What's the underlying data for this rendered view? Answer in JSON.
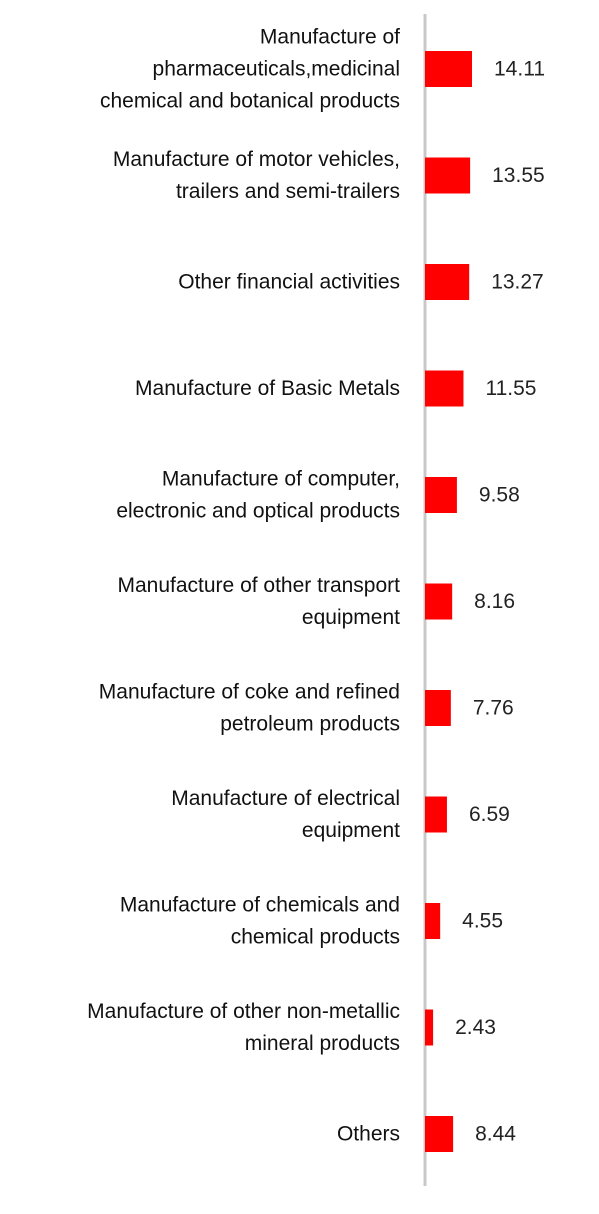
{
  "chart_data": {
    "type": "bar",
    "orientation": "horizontal",
    "title": "",
    "xlabel": "",
    "ylabel": "",
    "xlim": [
      0,
      14.11
    ],
    "grid": false,
    "legend": "none",
    "bar_color": "#ff0000",
    "axis_color": "#c8c8c8",
    "categories": [
      [
        "Manufacture of",
        "pharmaceuticals,medicinal",
        "chemical and botanical products"
      ],
      [
        "Manufacture of motor vehicles,",
        "trailers and semi-trailers"
      ],
      [
        "Other financial activities"
      ],
      [
        "Manufacture of Basic Metals"
      ],
      [
        "Manufacture of computer,",
        "electronic and optical products"
      ],
      [
        "Manufacture of other transport",
        "equipment"
      ],
      [
        "Manufacture of coke and refined",
        "petroleum products"
      ],
      [
        "Manufacture of electrical",
        "equipment"
      ],
      [
        "Manufacture of chemicals and",
        "chemical products"
      ],
      [
        "Manufacture of other non-metallic",
        "mineral products"
      ],
      [
        "Others"
      ]
    ],
    "values": [
      14.11,
      13.55,
      13.27,
      11.55,
      9.58,
      8.16,
      7.76,
      6.59,
      4.55,
      2.43,
      8.44
    ],
    "value_labels": [
      "14.11",
      "13.55",
      "13.27",
      "11.55",
      "9.58",
      "8.16",
      "7.76",
      "6.59",
      "4.55",
      "2.43",
      "8.44"
    ]
  }
}
